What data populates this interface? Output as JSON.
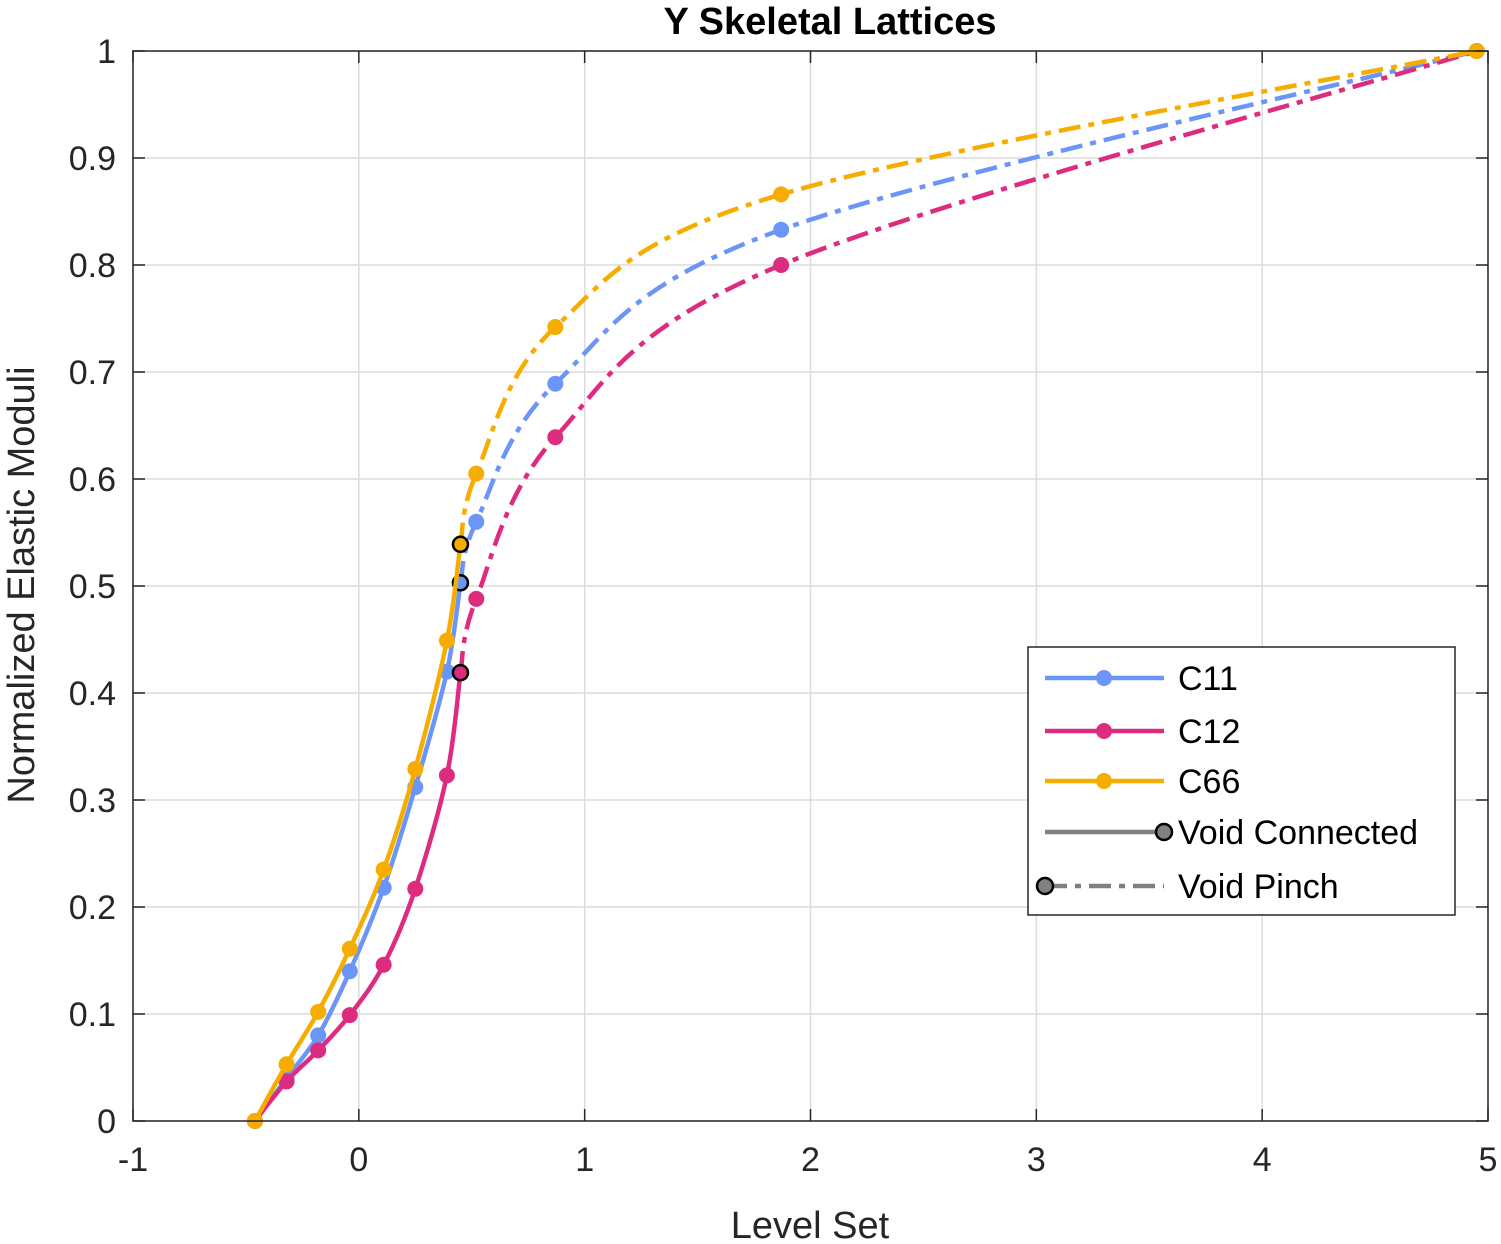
{
  "chart_data": {
    "type": "line",
    "title": "Y Skeletal Lattices",
    "xlabel": "Level Set",
    "ylabel": "Normalized Elastic Moduli",
    "xlim": [
      -1,
      5
    ],
    "ylim": [
      0,
      1
    ],
    "xticks": [
      "-1",
      "0",
      "1",
      "2",
      "3",
      "4",
      "5"
    ],
    "yticks": [
      "0",
      "0.1",
      "0.2",
      "0.3",
      "0.4",
      "0.5",
      "0.6",
      "0.7",
      "0.8",
      "0.9",
      "1"
    ],
    "grid": true,
    "legend_position": "lower-right",
    "legend": [
      {
        "label": "C11",
        "kind": "series",
        "color": "#6b95f7"
      },
      {
        "label": "C12",
        "kind": "series",
        "color": "#dd2c7f"
      },
      {
        "label": "C66",
        "kind": "series",
        "color": "#f7ac00"
      },
      {
        "label": "Void Connected",
        "kind": "solid-style",
        "color": "#808080"
      },
      {
        "label": "Void Pinch",
        "kind": "dashed-style",
        "color": "#808080"
      }
    ],
    "series": [
      {
        "name": "C11",
        "color": "#6b95f7",
        "void_connected": {
          "x": [
            -0.46,
            -0.32,
            -0.18,
            -0.04,
            0.11,
            0.25,
            0.39
          ],
          "y": [
            0.0,
            0.04,
            0.08,
            0.14,
            0.218,
            0.312,
            0.42
          ]
        },
        "transition": {
          "x": 0.45,
          "y": 0.503
        },
        "void_pinch": {
          "x": [
            0.52,
            0.87,
            1.87,
            4.95
          ],
          "y": [
            0.56,
            0.689,
            0.833,
            1.0
          ]
        }
      },
      {
        "name": "C12",
        "color": "#dd2c7f",
        "void_connected": {
          "x": [
            -0.46,
            -0.32,
            -0.18,
            -0.04,
            0.11,
            0.25,
            0.39
          ],
          "y": [
            0.0,
            0.037,
            0.066,
            0.099,
            0.146,
            0.217,
            0.323
          ]
        },
        "transition": {
          "x": 0.45,
          "y": 0.419
        },
        "void_pinch": {
          "x": [
            0.52,
            0.87,
            1.87,
            4.95
          ],
          "y": [
            0.488,
            0.639,
            0.8,
            1.0
          ]
        }
      },
      {
        "name": "C66",
        "color": "#f7ac00",
        "void_connected": {
          "x": [
            -0.46,
            -0.32,
            -0.18,
            -0.04,
            0.11,
            0.25,
            0.39
          ],
          "y": [
            0.0,
            0.053,
            0.102,
            0.161,
            0.235,
            0.329,
            0.449
          ]
        },
        "transition": {
          "x": 0.45,
          "y": 0.539
        },
        "void_pinch": {
          "x": [
            0.52,
            0.87,
            1.87,
            4.95
          ],
          "y": [
            0.605,
            0.742,
            0.866,
            1.0
          ]
        }
      }
    ]
  }
}
